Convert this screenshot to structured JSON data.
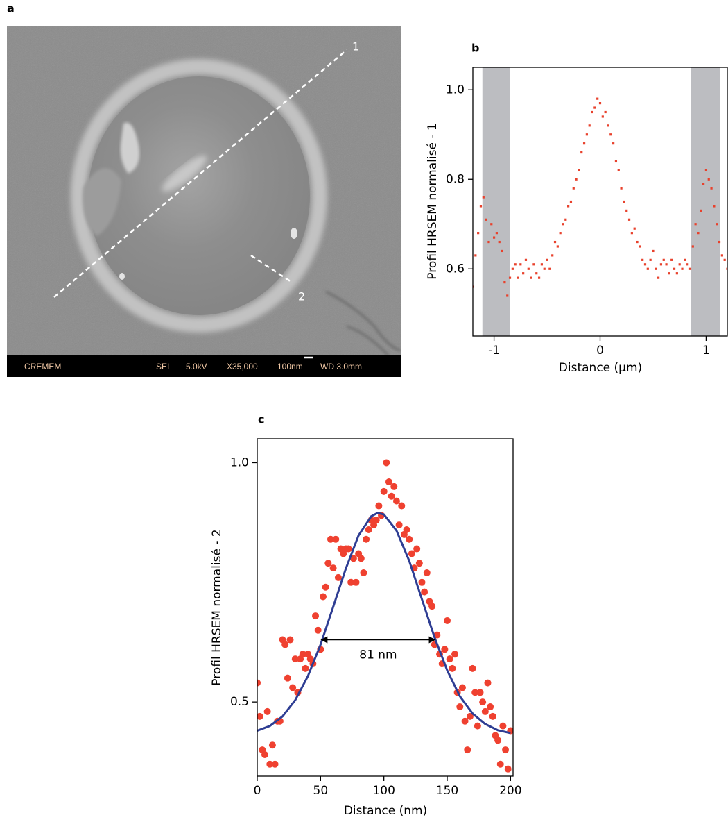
{
  "image": {
    "panel_label": "a",
    "line_labels": [
      "1",
      "2"
    ],
    "info_bar": [
      "CREMEM",
      "SEI",
      "5.0kV",
      "X35,000",
      "100nm",
      "WD 3.0mm"
    ]
  },
  "chart_data": [
    {
      "type": "scatter",
      "panel_label": "b",
      "y_label": "Profil HRSEM normalisé - 1",
      "x_label": "Distance (µm)",
      "xlim": [
        -1.2,
        1.2
      ],
      "ylim": [
        0.45,
        1.05
      ],
      "xticks": [
        -1,
        0,
        1
      ],
      "yticks": [
        0.6,
        0.8,
        {
          "value": 1,
          "label": "1.0"
        }
      ],
      "shaded_regions": [
        [
          -1.11,
          -0.85
        ],
        [
          0.86,
          1.13
        ]
      ],
      "shade_color": "#bcbdc1",
      "color": "#e8412c",
      "marker": "square",
      "x": [
        -1.2,
        -1.175,
        -1.15,
        -1.125,
        -1.1,
        -1.075,
        -1.05,
        -1.025,
        -1,
        -0.975,
        -0.95,
        -0.925,
        -0.9,
        -0.875,
        -0.85,
        -0.825,
        -0.8,
        -0.775,
        -0.75,
        -0.725,
        -0.7,
        -0.675,
        -0.65,
        -0.625,
        -0.6,
        -0.575,
        -0.55,
        -0.525,
        -0.5,
        -0.475,
        -0.45,
        -0.425,
        -0.4,
        -0.375,
        -0.35,
        -0.325,
        -0.3,
        -0.275,
        -0.25,
        -0.225,
        -0.2,
        -0.175,
        -0.15,
        -0.125,
        -0.1,
        -0.075,
        -0.05,
        -0.025,
        0,
        0.025,
        0.05,
        0.075,
        0.1,
        0.125,
        0.15,
        0.175,
        0.2,
        0.225,
        0.25,
        0.275,
        0.3,
        0.325,
        0.35,
        0.375,
        0.4,
        0.425,
        0.45,
        0.475,
        0.5,
        0.525,
        0.55,
        0.575,
        0.6,
        0.625,
        0.65,
        0.675,
        0.7,
        0.725,
        0.75,
        0.775,
        0.8,
        0.825,
        0.85,
        0.875,
        0.9,
        0.925,
        0.95,
        0.975,
        1,
        1.025,
        1.05,
        1.075,
        1.1,
        1.125,
        1.15,
        1.175,
        1.2
      ],
      "values": [
        0.56,
        0.63,
        0.68,
        0.74,
        0.76,
        0.71,
        0.66,
        0.7,
        0.67,
        0.68,
        0.66,
        0.64,
        0.57,
        0.54,
        0.58,
        0.6,
        0.61,
        0.58,
        0.61,
        0.59,
        0.62,
        0.6,
        0.58,
        0.61,
        0.59,
        0.58,
        0.61,
        0.6,
        0.62,
        0.6,
        0.63,
        0.66,
        0.65,
        0.68,
        0.7,
        0.71,
        0.74,
        0.75,
        0.78,
        0.8,
        0.82,
        0.86,
        0.88,
        0.9,
        0.92,
        0.95,
        0.96,
        0.98,
        0.97,
        0.94,
        0.95,
        0.92,
        0.9,
        0.88,
        0.84,
        0.82,
        0.78,
        0.75,
        0.73,
        0.71,
        0.68,
        0.69,
        0.66,
        0.65,
        0.62,
        0.61,
        0.6,
        0.62,
        0.64,
        0.6,
        0.58,
        0.61,
        0.62,
        0.61,
        0.59,
        0.62,
        0.6,
        0.59,
        0.61,
        0.6,
        0.62,
        0.61,
        0.6,
        0.65,
        0.7,
        0.68,
        0.73,
        0.79,
        0.82,
        0.8,
        0.78,
        0.74,
        0.7,
        0.66,
        0.63,
        0.62,
        0.6
      ]
    },
    {
      "type": "scatter",
      "panel_label": "c",
      "y_label": "Profil HRSEM normalisé - 2",
      "x_label": "Distance (nm)",
      "xlim": [
        0,
        202
      ],
      "ylim": [
        0.345,
        1.05
      ],
      "xticks": [
        0,
        50,
        100,
        150,
        200
      ],
      "yticks": [
        0.5,
        {
          "value": 1,
          "label": "1.0"
        }
      ],
      "color": "#ef4130",
      "marker": "circle",
      "x": [
        0,
        2,
        4,
        6,
        8,
        10,
        12,
        14,
        16,
        18,
        20,
        22,
        24,
        26,
        28,
        30,
        32,
        34,
        36,
        38,
        40,
        42,
        44,
        46,
        48,
        50,
        52,
        54,
        56,
        58,
        60,
        62,
        64,
        66,
        68,
        70,
        72,
        74,
        76,
        78,
        80,
        82,
        84,
        86,
        88,
        90,
        92,
        94,
        96,
        98,
        100,
        102,
        104,
        106,
        108,
        110,
        112,
        114,
        116,
        118,
        120,
        122,
        124,
        126,
        128,
        130,
        132,
        134,
        136,
        138,
        140,
        142,
        144,
        146,
        148,
        150,
        152,
        154,
        156,
        158,
        160,
        162,
        164,
        166,
        168,
        170,
        172,
        174,
        176,
        178,
        180,
        182,
        184,
        186,
        188,
        190,
        192,
        194,
        196,
        198,
        200
      ],
      "values": [
        0.54,
        0.47,
        0.4,
        0.39,
        0.48,
        0.37,
        0.41,
        0.37,
        0.46,
        0.46,
        0.63,
        0.62,
        0.55,
        0.63,
        0.53,
        0.59,
        0.52,
        0.59,
        0.6,
        0.57,
        0.6,
        0.59,
        0.58,
        0.68,
        0.65,
        0.61,
        0.72,
        0.74,
        0.79,
        0.84,
        0.78,
        0.84,
        0.76,
        0.82,
        0.81,
        0.82,
        0.82,
        0.75,
        0.8,
        0.75,
        0.81,
        0.8,
        0.77,
        0.84,
        0.86,
        0.88,
        0.87,
        0.88,
        0.91,
        0.89,
        0.94,
        1.0,
        0.96,
        0.93,
        0.95,
        0.92,
        0.87,
        0.91,
        0.85,
        0.86,
        0.84,
        0.81,
        0.78,
        0.82,
        0.79,
        0.75,
        0.73,
        0.77,
        0.71,
        0.7,
        0.62,
        0.64,
        0.6,
        0.58,
        0.61,
        0.67,
        0.59,
        0.57,
        0.6,
        0.52,
        0.49,
        0.53,
        0.46,
        0.4,
        0.47,
        0.57,
        0.52,
        0.45,
        0.52,
        0.5,
        0.48,
        0.54,
        0.49,
        0.47,
        0.43,
        0.42,
        0.37,
        0.45,
        0.4,
        0.36,
        0.44
      ],
      "fit": {
        "color": "#2e3d93",
        "x": [
          0,
          10,
          20,
          30,
          40,
          50,
          60,
          70,
          80,
          90,
          95,
          100,
          110,
          120,
          130,
          140,
          150,
          160,
          170,
          180,
          190,
          200
        ],
        "values": [
          0.44,
          0.45,
          0.47,
          0.504,
          0.554,
          0.62,
          0.699,
          0.779,
          0.848,
          0.888,
          0.895,
          0.892,
          0.858,
          0.795,
          0.715,
          0.635,
          0.566,
          0.512,
          0.476,
          0.454,
          0.441,
          0.435
        ]
      },
      "annotation": {
        "text": "81 nm",
        "x_start": 50,
        "x_end": 141,
        "y": 0.63
      }
    }
  ]
}
